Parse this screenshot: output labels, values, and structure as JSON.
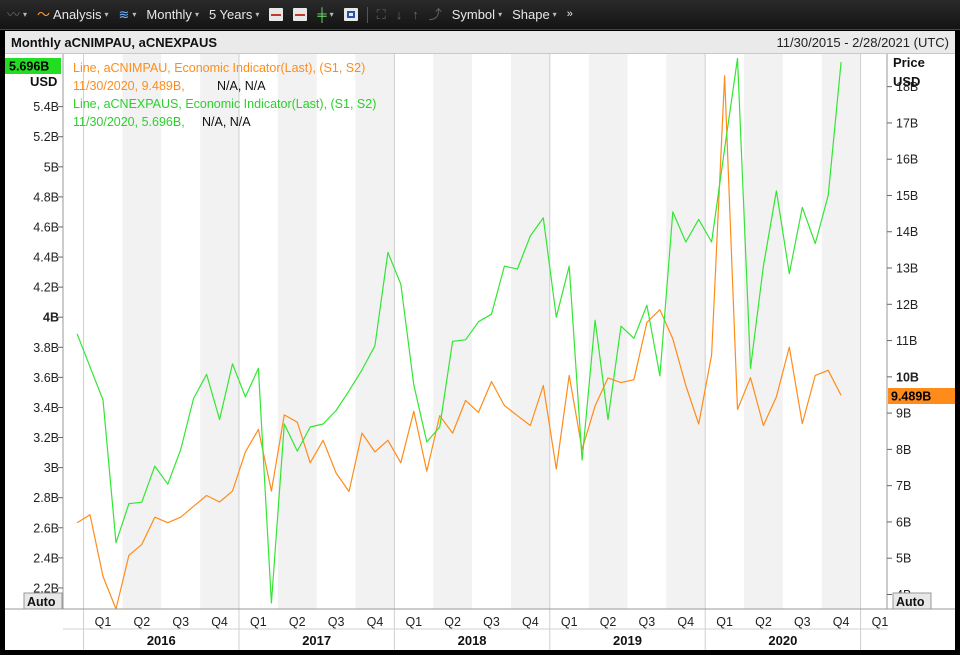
{
  "toolbar": {
    "analysis_label": "Analysis",
    "interval_label": "Monthly",
    "range_label": "5 Years",
    "symbol_label": "Symbol",
    "shape_label": "Shape"
  },
  "header": {
    "title": "Monthly aCNIMPAU, aCNEXPAUS",
    "date_range": "11/30/2015 - 2/28/2021 (UTC)"
  },
  "legend": {
    "s1_line": "Line, aCNIMPAU, Economic Indicator(Last), (S1, S2)",
    "s1_value": "11/30/2020, 9.489B,",
    "s1_na": "N/A, N/A",
    "s2_line": "Line, aCNEXPAUS, Economic Indicator(Last), (S1, S2)",
    "s2_value": "11/30/2020, 5.696B,",
    "s2_na": "N/A, N/A"
  },
  "axes": {
    "left_unit": "USD",
    "right_title": "Price",
    "right_unit": "USD",
    "auto_label": "Auto"
  },
  "colors": {
    "imports": "#ff8c1a",
    "exports": "#33e633",
    "shade": "#f2f2f2",
    "grid": "#e2e2e2"
  },
  "chart_data": {
    "type": "line",
    "x_start": "2015-12",
    "x_end": "2020-12",
    "quarter_labels": [
      "Q1",
      "Q2",
      "Q3",
      "Q4",
      "Q1",
      "Q2",
      "Q3",
      "Q4",
      "Q1",
      "Q2",
      "Q3",
      "Q4",
      "Q1",
      "Q2",
      "Q3",
      "Q4",
      "Q1",
      "Q2",
      "Q3",
      "Q4",
      "Q1"
    ],
    "year_labels": [
      "2016",
      "2017",
      "2018",
      "2019",
      "2020"
    ],
    "left_axis": {
      "unit": "USD",
      "ylim": [
        2.06,
        5.75
      ],
      "ticks": [
        "2.2B",
        "2.4B",
        "2.6B",
        "2.8B",
        "3B",
        "3.2B",
        "3.4B",
        "3.6B",
        "3.8B",
        "4B",
        "4.2B",
        "4.4B",
        "4.6B",
        "4.8B",
        "5B",
        "5.2B",
        "5.4B"
      ],
      "tick_values": [
        2.2,
        2.4,
        2.6,
        2.8,
        3.0,
        3.2,
        3.4,
        3.6,
        3.8,
        4.0,
        4.2,
        4.4,
        4.6,
        4.8,
        5.0,
        5.2,
        5.4
      ],
      "last_value_label": "5.696B"
    },
    "right_axis": {
      "unit": "USD",
      "ylim": [
        3.6,
        18.9
      ],
      "ticks": [
        "4B",
        "5B",
        "6B",
        "7B",
        "8B",
        "9B",
        "10B",
        "11B",
        "12B",
        "13B",
        "14B",
        "15B",
        "16B",
        "17B",
        "18B"
      ],
      "tick_values": [
        4,
        5,
        6,
        7,
        8,
        9,
        10,
        11,
        12,
        13,
        14,
        15,
        16,
        17,
        18
      ],
      "last_value_label": "9.489B"
    },
    "series": [
      {
        "name": "aCNIMPAU",
        "axis": "right",
        "values": [
          5.98,
          6.2,
          4.5,
          3.6,
          5.08,
          5.38,
          6.13,
          5.98,
          6.13,
          6.43,
          6.73,
          6.55,
          6.85,
          7.93,
          8.55,
          6.85,
          8.95,
          8.75,
          7.63,
          8.25,
          7.35,
          6.84,
          8.45,
          7.93,
          8.25,
          7.63,
          9.05,
          7.4,
          8.93,
          8.45,
          9.35,
          9.02,
          9.87,
          9.21,
          8.93,
          8.66,
          9.76,
          7.46,
          10.04,
          8.0,
          9.2,
          9.97,
          9.84,
          9.92,
          11.5,
          11.85,
          11.05,
          9.76,
          8.7,
          10.6,
          18.3,
          9.1,
          9.98,
          8.66,
          9.45,
          10.82,
          8.71,
          10.04,
          10.18,
          9.489
        ]
      },
      {
        "name": "aCNEXPAUS",
        "axis": "left",
        "values": [
          3.89,
          3.67,
          3.45,
          2.5,
          2.76,
          2.77,
          3.01,
          2.89,
          3.12,
          3.46,
          3.62,
          3.32,
          3.69,
          3.47,
          3.66,
          2.1,
          3.29,
          3.11,
          3.27,
          3.29,
          3.38,
          3.51,
          3.65,
          3.81,
          4.43,
          4.22,
          3.55,
          3.17,
          3.27,
          3.84,
          3.85,
          3.97,
          4.02,
          4.34,
          4.32,
          4.54,
          4.66,
          4.0,
          4.34,
          3.05,
          3.98,
          3.32,
          3.94,
          3.86,
          4.08,
          3.61,
          4.7,
          4.5,
          4.65,
          4.5,
          5.12,
          5.72,
          3.66,
          4.34,
          4.84,
          4.29,
          4.73,
          4.49,
          4.81,
          5.696
        ]
      }
    ]
  }
}
